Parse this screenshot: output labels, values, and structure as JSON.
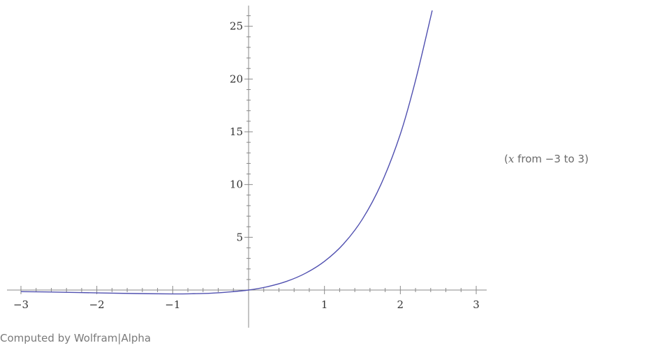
{
  "range_note": {
    "open": "(",
    "var": "x",
    "from_word": " from ",
    "from_value": "−3",
    "to_word": " to ",
    "to_value": "3",
    "close": ")"
  },
  "credit": "Computed by Wolfram|Alpha",
  "colors": {
    "curve": "#5050b0",
    "axis": "#888888",
    "tick_text": "#333333"
  },
  "chart_data": {
    "type": "line",
    "title": "",
    "xlabel": "",
    "ylabel": "",
    "xlim": [
      -3,
      3
    ],
    "ylim": [
      0,
      26.5
    ],
    "x_ticks": [
      {
        "value": -3,
        "label": "−3"
      },
      {
        "value": -2,
        "label": "−2"
      },
      {
        "value": -1,
        "label": "−1"
      },
      {
        "value": 1,
        "label": "1"
      },
      {
        "value": 2,
        "label": "2"
      },
      {
        "value": 3,
        "label": "3"
      }
    ],
    "y_ticks": [
      {
        "value": 5,
        "label": "5"
      },
      {
        "value": 10,
        "label": "10"
      },
      {
        "value": 15,
        "label": "15"
      },
      {
        "value": 20,
        "label": "20"
      },
      {
        "value": 25,
        "label": "25"
      }
    ],
    "grid": false,
    "series": [
      {
        "x": [
          -3.0,
          -2.5,
          -2.0,
          -1.5,
          -1.0,
          -0.75,
          -0.5,
          -0.25,
          0.0,
          0.25,
          0.5,
          0.75,
          1.0,
          1.25,
          1.5,
          1.75,
          2.0,
          2.2,
          2.42
        ],
        "y": [
          -0.15,
          -0.2,
          -0.27,
          -0.33,
          -0.37,
          -0.35,
          -0.3,
          -0.18,
          0.0,
          0.32,
          0.82,
          1.59,
          2.72,
          4.36,
          6.72,
          10.1,
          14.78,
          19.86,
          26.5
        ]
      }
    ]
  }
}
